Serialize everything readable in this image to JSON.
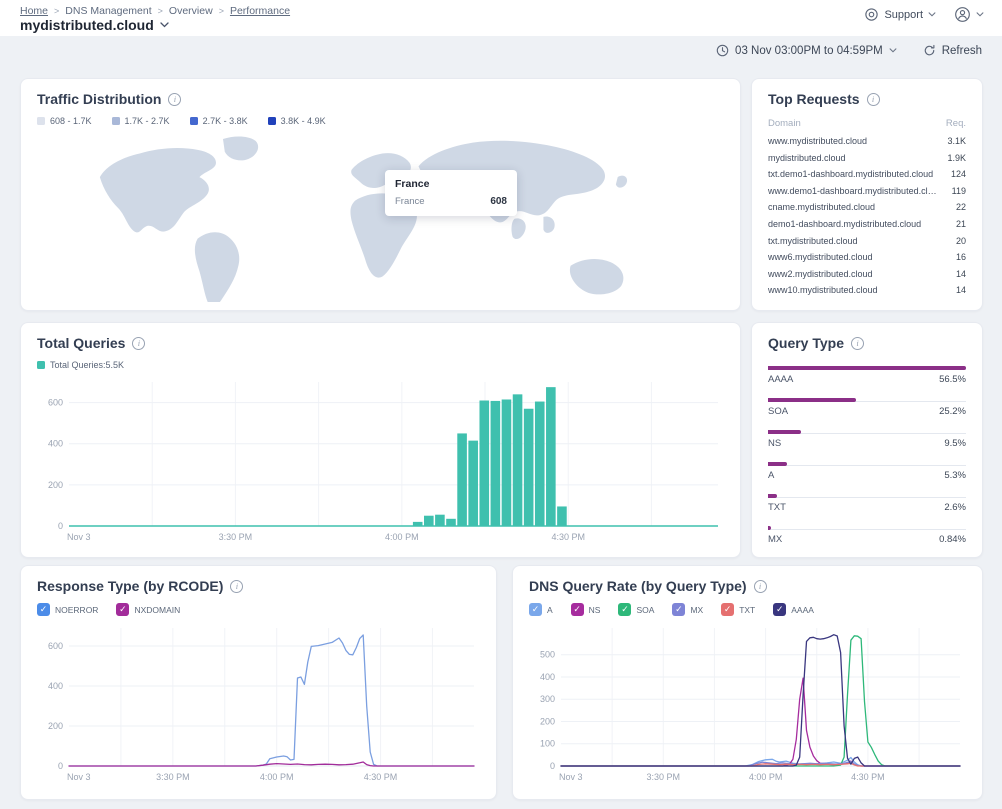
{
  "header": {
    "breadcrumb": [
      "Home",
      "DNS Management",
      "Overview",
      "Performance"
    ],
    "zone_title": "mydistributed.cloud",
    "support_label": "Support"
  },
  "toolbar": {
    "date_range": "03 Nov 03:00PM to 04:59PM",
    "refresh_label": "Refresh"
  },
  "traffic_distribution": {
    "title": "Traffic Distribution",
    "legend": [
      {
        "label": "608 - 1.7K",
        "color": "#dde2ec"
      },
      {
        "label": "1.7K - 2.7K",
        "color": "#a9b8d8"
      },
      {
        "label": "2.7K - 3.8K",
        "color": "#4468cf"
      },
      {
        "label": "3.8K - 4.9K",
        "color": "#2142bb"
      }
    ],
    "map_fill": "#cfd8e5",
    "tooltip": {
      "title": "France",
      "country": "France",
      "value": "608"
    }
  },
  "top_requests": {
    "title": "Top Requests",
    "columns": [
      "Domain",
      "Req."
    ],
    "rows": [
      {
        "domain": "www.mydistributed.cloud",
        "requests": "3.1K"
      },
      {
        "domain": "mydistributed.cloud",
        "requests": "1.9K"
      },
      {
        "domain": "txt.demo1-dashboard.mydistributed.cloud",
        "requests": "124"
      },
      {
        "domain": "www.demo1-dashboard.mydistributed.cloud",
        "requests": "119"
      },
      {
        "domain": "cname.mydistributed.cloud",
        "requests": "22"
      },
      {
        "domain": "demo1-dashboard.mydistributed.cloud",
        "requests": "21"
      },
      {
        "domain": "txt.mydistributed.cloud",
        "requests": "20"
      },
      {
        "domain": "www6.mydistributed.cloud",
        "requests": "16"
      },
      {
        "domain": "www2.mydistributed.cloud",
        "requests": "14"
      },
      {
        "domain": "www10.mydistributed.cloud",
        "requests": "14"
      }
    ]
  },
  "total_queries": {
    "title": "Total Queries",
    "legend": [
      {
        "label": "Total Queries:5.5K",
        "color": "#3fc0ae"
      }
    ]
  },
  "query_type": {
    "title": "Query Type"
  },
  "response_type": {
    "title": "Response Type (by RCODE)",
    "legend": [
      {
        "label": "NOERROR",
        "color": "#4c8ce8"
      },
      {
        "label": "NXDOMAIN",
        "color": "#a22c9a"
      }
    ]
  },
  "dns_query_rate": {
    "title": "DNS Query Rate (by Query Type)",
    "legend": [
      {
        "label": "A",
        "color": "#7aa7ea"
      },
      {
        "label": "NS",
        "color": "#a62c9e"
      },
      {
        "label": "SOA",
        "color": "#2eb87a"
      },
      {
        "label": "MX",
        "color": "#7e84d6"
      },
      {
        "label": "TXT",
        "color": "#e57070"
      },
      {
        "label": "AAAA",
        "color": "#39367f"
      }
    ]
  },
  "chart_data": [
    {
      "id": "total_queries",
      "type": "bar",
      "title": "Total Queries",
      "total": "5.5K",
      "x_unit": "minutes after 3:00 PM, Nov 3",
      "x_range": [
        0,
        117
      ],
      "x_ticks": [
        {
          "m": 0,
          "label": "Nov 3"
        },
        {
          "m": 30,
          "label": "3:30 PM"
        },
        {
          "m": 60,
          "label": "4:00 PM"
        },
        {
          "m": 90,
          "label": "4:30 PM"
        }
      ],
      "y_ticks": [
        0,
        200,
        400,
        600
      ],
      "ylim": [
        0,
        700
      ],
      "grid": true,
      "color": "#3fc0ae",
      "bar_width_minutes": 2,
      "bars": [
        {
          "m": 62,
          "v": 20
        },
        {
          "m": 64,
          "v": 50
        },
        {
          "m": 66,
          "v": 55
        },
        {
          "m": 68,
          "v": 35
        },
        {
          "m": 70,
          "v": 450
        },
        {
          "m": 72,
          "v": 415
        },
        {
          "m": 74,
          "v": 610
        },
        {
          "m": 76,
          "v": 608
        },
        {
          "m": 78,
          "v": 615
        },
        {
          "m": 80,
          "v": 640
        },
        {
          "m": 82,
          "v": 570
        },
        {
          "m": 84,
          "v": 605
        },
        {
          "m": 86,
          "v": 675
        },
        {
          "m": 88,
          "v": 95
        }
      ]
    },
    {
      "id": "query_type",
      "type": "bar-horizontal",
      "title": "Query Type",
      "bar_color": "#8b2f87",
      "max_value": 56.5,
      "rows": [
        {
          "label": "AAAA",
          "pct": "56.5%",
          "value": 56.5
        },
        {
          "label": "SOA",
          "pct": "25.2%",
          "value": 25.2
        },
        {
          "label": "NS",
          "pct": "9.5%",
          "value": 9.5
        },
        {
          "label": "A",
          "pct": "5.3%",
          "value": 5.3
        },
        {
          "label": "TXT",
          "pct": "2.6%",
          "value": 2.6
        },
        {
          "label": "MX",
          "pct": "0.84%",
          "value": 0.84
        }
      ]
    },
    {
      "id": "response_type",
      "type": "line",
      "title": "Response Type (by RCODE)",
      "x_unit": "minutes after 3:00 PM, Nov 3",
      "x_range": [
        0,
        117
      ],
      "x_ticks": [
        {
          "m": 0,
          "label": "Nov 3"
        },
        {
          "m": 30,
          "label": "3:30 PM"
        },
        {
          "m": 60,
          "label": "4:00 PM"
        },
        {
          "m": 90,
          "label": "4:30 PM"
        }
      ],
      "y_ticks": [
        0,
        200,
        400,
        600
      ],
      "ylim": [
        0,
        690
      ],
      "grid": true,
      "series": [
        {
          "name": "NOERROR",
          "color": "#7b9fe0",
          "points": [
            [
              0,
              0
            ],
            [
              54,
              0
            ],
            [
              56,
              4
            ],
            [
              57,
              10
            ],
            [
              58,
              36
            ],
            [
              60,
              45
            ],
            [
              62,
              50
            ],
            [
              63,
              46
            ],
            [
              64,
              30
            ],
            [
              65,
              33
            ],
            [
              66,
              440
            ],
            [
              67,
              445
            ],
            [
              68,
              408
            ],
            [
              69,
              520
            ],
            [
              70,
              598
            ],
            [
              72,
              602
            ],
            [
              74,
              610
            ],
            [
              76,
              618
            ],
            [
              78,
              640
            ],
            [
              79,
              615
            ],
            [
              80,
              578
            ],
            [
              81,
              558
            ],
            [
              82,
              556
            ],
            [
              83,
              592
            ],
            [
              84,
              638
            ],
            [
              85,
              655
            ],
            [
              86,
              300
            ],
            [
              87,
              70
            ],
            [
              88,
              8
            ],
            [
              89,
              0
            ],
            [
              117,
              0
            ]
          ]
        },
        {
          "name": "NXDOMAIN",
          "color": "#a22c9a",
          "points": [
            [
              0,
              0
            ],
            [
              54,
              0
            ],
            [
              56,
              4
            ],
            [
              58,
              9
            ],
            [
              60,
              12
            ],
            [
              62,
              10
            ],
            [
              64,
              8
            ],
            [
              66,
              10
            ],
            [
              68,
              7
            ],
            [
              70,
              6
            ],
            [
              72,
              8
            ],
            [
              74,
              9
            ],
            [
              76,
              8
            ],
            [
              78,
              6
            ],
            [
              80,
              7
            ],
            [
              82,
              9
            ],
            [
              84,
              16
            ],
            [
              85,
              20
            ],
            [
              86,
              7
            ],
            [
              87,
              2
            ],
            [
              88,
              0
            ],
            [
              117,
              0
            ]
          ]
        }
      ]
    },
    {
      "id": "dns_query_rate",
      "type": "line",
      "title": "DNS Query Rate (by Query Type)",
      "x_unit": "minutes after 3:00 PM, Nov 3",
      "x_range": [
        0,
        117
      ],
      "x_ticks": [
        {
          "m": 0,
          "label": "Nov 3"
        },
        {
          "m": 30,
          "label": "3:30 PM"
        },
        {
          "m": 60,
          "label": "4:00 PM"
        },
        {
          "m": 90,
          "label": "4:30 PM"
        }
      ],
      "y_ticks": [
        0,
        100,
        200,
        300,
        400,
        500
      ],
      "ylim": [
        0,
        620
      ],
      "grid": true,
      "series": [
        {
          "name": "A",
          "color": "#7aa7ea",
          "points": [
            [
              0,
              0
            ],
            [
              54,
              0
            ],
            [
              56,
              6
            ],
            [
              58,
              20
            ],
            [
              60,
              28
            ],
            [
              62,
              30
            ],
            [
              63,
              22
            ],
            [
              64,
              18
            ],
            [
              66,
              22
            ],
            [
              68,
              12
            ],
            [
              70,
              9
            ],
            [
              72,
              11
            ],
            [
              74,
              9
            ],
            [
              76,
              11
            ],
            [
              78,
              14
            ],
            [
              80,
              18
            ],
            [
              82,
              12
            ],
            [
              84,
              26
            ],
            [
              85,
              38
            ],
            [
              86,
              18
            ],
            [
              87,
              6
            ],
            [
              88,
              0
            ],
            [
              117,
              0
            ]
          ]
        },
        {
          "name": "NS",
          "color": "#a62c9e",
          "points": [
            [
              0,
              0
            ],
            [
              65,
              0
            ],
            [
              67,
              8
            ],
            [
              68,
              30
            ],
            [
              69,
              120
            ],
            [
              70,
              300
            ],
            [
              71,
              395
            ],
            [
              72,
              160
            ],
            [
              73,
              85
            ],
            [
              74,
              45
            ],
            [
              75,
              24
            ],
            [
              76,
              12
            ],
            [
              78,
              8
            ],
            [
              80,
              6
            ],
            [
              82,
              8
            ],
            [
              84,
              12
            ],
            [
              85,
              22
            ],
            [
              86,
              8
            ],
            [
              87,
              2
            ],
            [
              88,
              0
            ],
            [
              117,
              0
            ]
          ]
        },
        {
          "name": "SOA",
          "color": "#2eb87a",
          "points": [
            [
              0,
              0
            ],
            [
              80,
              0
            ],
            [
              82,
              4
            ],
            [
              83,
              40
            ],
            [
              84,
              320
            ],
            [
              85,
              565
            ],
            [
              86,
              585
            ],
            [
              87,
              583
            ],
            [
              88,
              572
            ],
            [
              89,
              290
            ],
            [
              90,
              108
            ],
            [
              91,
              84
            ],
            [
              92,
              52
            ],
            [
              93,
              22
            ],
            [
              94,
              6
            ],
            [
              95,
              0
            ],
            [
              117,
              0
            ]
          ]
        },
        {
          "name": "MX",
          "color": "#7e84d6",
          "points": [
            [
              0,
              0
            ],
            [
              55,
              0
            ],
            [
              57,
              10
            ],
            [
              59,
              17
            ],
            [
              61,
              14
            ],
            [
              63,
              11
            ],
            [
              65,
              14
            ],
            [
              67,
              10
            ],
            [
              69,
              8
            ],
            [
              71,
              10
            ],
            [
              73,
              12
            ],
            [
              75,
              10
            ],
            [
              77,
              12
            ],
            [
              79,
              10
            ],
            [
              81,
              8
            ],
            [
              83,
              12
            ],
            [
              85,
              20
            ],
            [
              86,
              9
            ],
            [
              87,
              3
            ],
            [
              88,
              0
            ],
            [
              117,
              0
            ]
          ]
        },
        {
          "name": "TXT",
          "color": "#e57070",
          "points": [
            [
              0,
              0
            ],
            [
              56,
              0
            ],
            [
              58,
              7
            ],
            [
              60,
              10
            ],
            [
              62,
              8
            ],
            [
              64,
              6
            ],
            [
              66,
              8
            ],
            [
              68,
              6
            ],
            [
              70,
              7
            ],
            [
              72,
              6
            ],
            [
              74,
              7
            ],
            [
              76,
              6
            ],
            [
              78,
              7
            ],
            [
              80,
              6
            ],
            [
              82,
              7
            ],
            [
              84,
              10
            ],
            [
              85,
              12
            ],
            [
              86,
              5
            ],
            [
              87,
              0
            ],
            [
              117,
              0
            ]
          ]
        },
        {
          "name": "AAAA",
          "color": "#39367f",
          "points": [
            [
              0,
              0
            ],
            [
              68,
              0
            ],
            [
              69,
              4
            ],
            [
              70,
              40
            ],
            [
              71,
              320
            ],
            [
              72,
              560
            ],
            [
              73,
              576
            ],
            [
              74,
              578
            ],
            [
              75,
              572
            ],
            [
              76,
              570
            ],
            [
              77,
              572
            ],
            [
              78,
              576
            ],
            [
              79,
              582
            ],
            [
              80,
              590
            ],
            [
              81,
              584
            ],
            [
              82,
              510
            ],
            [
              83,
              180
            ],
            [
              84,
              35
            ],
            [
              85,
              8
            ],
            [
              86,
              34
            ],
            [
              87,
              40
            ],
            [
              88,
              14
            ],
            [
              89,
              0
            ],
            [
              117,
              0
            ]
          ]
        }
      ]
    }
  ]
}
